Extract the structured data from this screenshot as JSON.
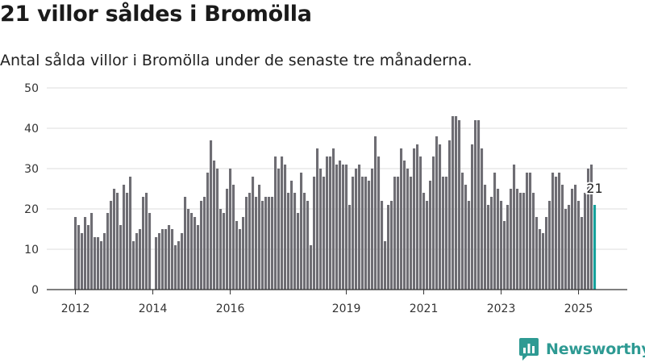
{
  "title": "21 villor såldes i Bromölla",
  "subtitle": "Antal sålda villor i Bromölla under de senaste tre månaderna.",
  "brand": {
    "name": "Newsworthy",
    "icon": "newsworthy-logo-icon",
    "color": "#2e9a93"
  },
  "colors": {
    "bar": "#6e6d73",
    "highlight": "#15a19b",
    "grid": "#dcdcdc",
    "axis": "#333333"
  },
  "chart_data": {
    "type": "bar",
    "title": "",
    "xlabel": "",
    "ylabel": "",
    "ylim": [
      0,
      50
    ],
    "yticks": [
      0,
      10,
      20,
      30,
      40,
      50
    ],
    "grid": true,
    "x_tick_labels": [
      "2012",
      "2014",
      "2016",
      "2019",
      "2021",
      "2023",
      "2025"
    ],
    "series": [
      {
        "segments": [
          {
            "start": "2012-01",
            "values": [
              18,
              16,
              14,
              18,
              16,
              19,
              13,
              13,
              12,
              14,
              19,
              22,
              25,
              24,
              16,
              26,
              24,
              28,
              12,
              14,
              15,
              23,
              24,
              19
            ]
          },
          {
            "start": "2014-02",
            "values": [
              13,
              14,
              15,
              15,
              16,
              15,
              11,
              12,
              14,
              23,
              20,
              19,
              18,
              16,
              22,
              23,
              29,
              37,
              32,
              30,
              20,
              19,
              25,
              30,
              26,
              17,
              15,
              18,
              23,
              24,
              28,
              23,
              26,
              22,
              23,
              23,
              23,
              33,
              30,
              33,
              31,
              24,
              27,
              24,
              19,
              29,
              24,
              22,
              11
            ]
          },
          {
            "start": "2018-03",
            "values": [
              28,
              35,
              30,
              28,
              33,
              33,
              35,
              31,
              32,
              31,
              31,
              21,
              28,
              30,
              31,
              28,
              28,
              27,
              30,
              38,
              33,
              22,
              12,
              21,
              22,
              28,
              28,
              35,
              32,
              30,
              28,
              35,
              36,
              33,
              24,
              22,
              27,
              33,
              38,
              36,
              28,
              28,
              37,
              43,
              43,
              42,
              29,
              26,
              22,
              36,
              42,
              42,
              35,
              26,
              21,
              23,
              29,
              25,
              22,
              17,
              21,
              25,
              31,
              25,
              24,
              24,
              29,
              29,
              24,
              18,
              15,
              14,
              18,
              22,
              29,
              28,
              29,
              26,
              20,
              21,
              25,
              26,
              22,
              18,
              24,
              30,
              31
            ]
          },
          {
            "start": "2025-06",
            "values": [
              21
            ],
            "highlight": true
          }
        ]
      }
    ],
    "annotation": {
      "label": "21",
      "date": "2025-06",
      "value": 21
    }
  }
}
